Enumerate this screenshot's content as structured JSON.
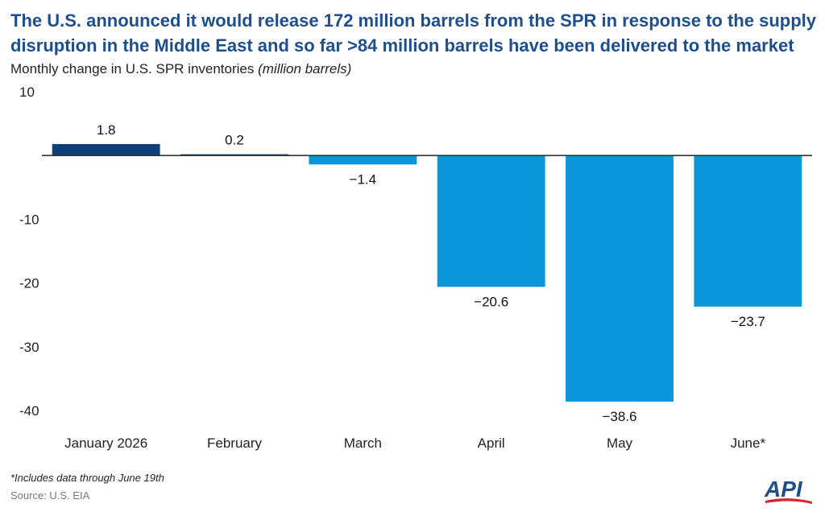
{
  "header": {
    "title": "The U.S. announced it would release 172 million barrels from the SPR in response to the supply disruption in the Middle East and so far >84 million barrels have been delivered to the market",
    "subtitle_main": "Monthly change in U.S. SPR inventories",
    "subtitle_unit": "(million barrels)"
  },
  "footer": {
    "footnote": "*Includes data through June 19th",
    "source": "Source: U.S. EIA",
    "logo_text": "API"
  },
  "colors": {
    "title": "#1f4e8c",
    "positive_bar": "#0d3f78",
    "negative_bar": "#0a96d8",
    "axis": "#333333",
    "logo_blue": "#1f4e8c",
    "logo_red": "#d9262e"
  },
  "chart_data": {
    "type": "bar",
    "categories": [
      "January 2026",
      "February",
      "March",
      "April",
      "May",
      "June*"
    ],
    "values": [
      1.8,
      0.2,
      -1.4,
      -20.6,
      -38.6,
      -23.7
    ],
    "value_labels": [
      "1.8",
      "0.2",
      "−1.4",
      "−20.6",
      "−38.6",
      "−23.7"
    ],
    "yticks": [
      10,
      -10,
      -20,
      -30,
      -40
    ],
    "ytick_labels": [
      "10",
      "-10",
      "-20",
      "-30",
      "-40"
    ],
    "ylim": [
      -40,
      10
    ],
    "grid": false,
    "legend": false
  }
}
